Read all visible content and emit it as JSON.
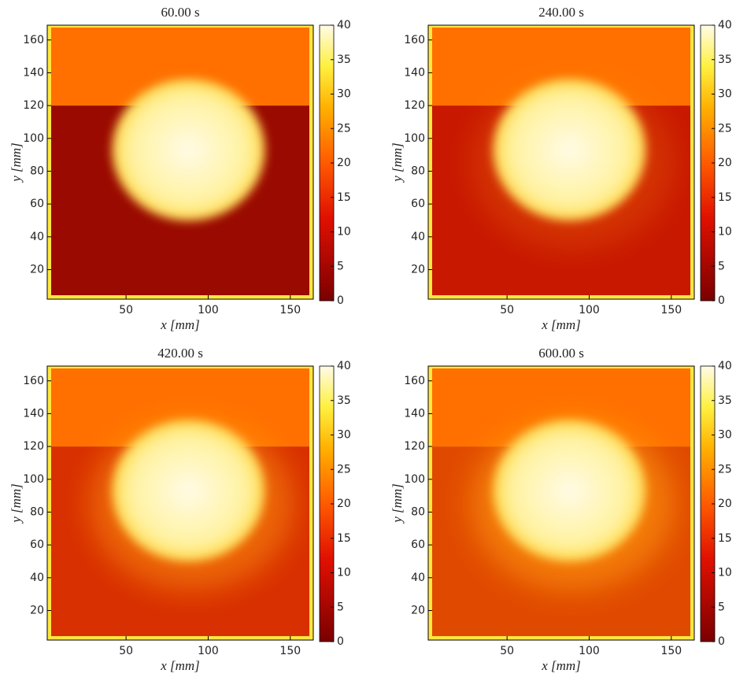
{
  "chart_data": [
    {
      "type": "heatmap",
      "title": "60.00 s",
      "xlabel": "x [mm]",
      "ylabel": "y [mm]",
      "xlim": [
        2,
        164
      ],
      "ylim": [
        2,
        169
      ],
      "xticks": [
        50,
        100,
        150
      ],
      "yticks": [
        20,
        40,
        60,
        80,
        100,
        120,
        140,
        160
      ],
      "clim": [
        0,
        40
      ],
      "cticks": [
        0,
        5,
        10,
        15,
        20,
        25,
        30,
        35,
        40
      ]
    },
    {
      "type": "heatmap",
      "title": "240.00 s",
      "xlabel": "x [mm]",
      "ylabel": "y [mm]",
      "xlim": [
        2,
        164
      ],
      "ylim": [
        2,
        169
      ],
      "xticks": [
        50,
        100,
        150
      ],
      "yticks": [
        20,
        40,
        60,
        80,
        100,
        120,
        140,
        160
      ],
      "clim": [
        0,
        40
      ],
      "cticks": [
        0,
        5,
        10,
        15,
        20,
        25,
        30,
        35,
        40
      ]
    },
    {
      "type": "heatmap",
      "title": "420.00 s",
      "xlabel": "x [mm]",
      "ylabel": "y [mm]",
      "xlim": [
        2,
        164
      ],
      "ylim": [
        2,
        169
      ],
      "xticks": [
        50,
        100,
        150
      ],
      "yticks": [
        20,
        40,
        60,
        80,
        100,
        120,
        140,
        160
      ],
      "clim": [
        0,
        40
      ],
      "cticks": [
        0,
        5,
        10,
        15,
        20,
        25,
        30,
        35,
        40
      ]
    },
    {
      "type": "heatmap",
      "title": "600.00 s",
      "xlabel": "x [mm]",
      "ylabel": "y [mm]",
      "xlim": [
        2,
        164
      ],
      "ylim": [
        2,
        169
      ],
      "xticks": [
        50,
        100,
        150
      ],
      "yticks": [
        20,
        40,
        60,
        80,
        100,
        120,
        140,
        160
      ],
      "clim": [
        0,
        40
      ],
      "cticks": [
        0,
        5,
        10,
        15,
        20,
        25,
        30,
        35,
        40
      ]
    }
  ]
}
